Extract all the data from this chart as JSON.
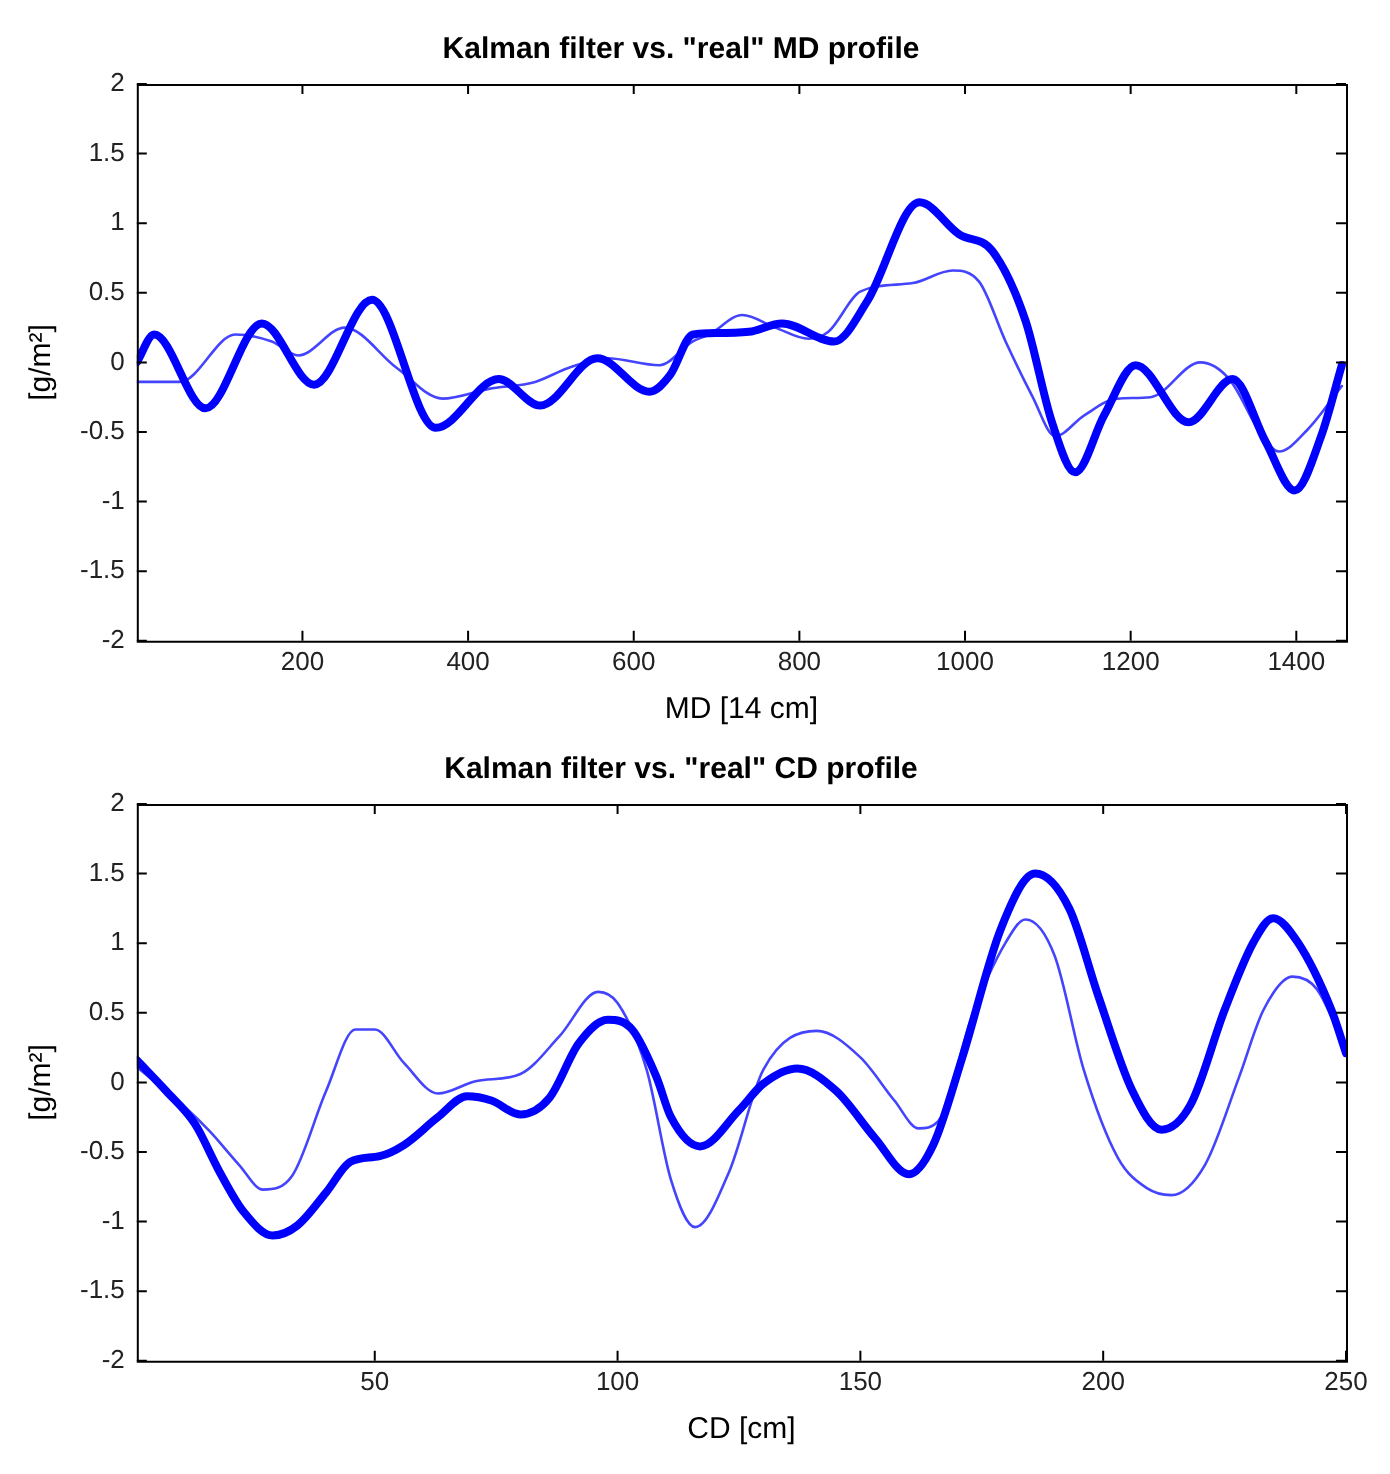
{
  "chart_data": [
    {
      "type": "line",
      "title": "Kalman filter vs. \"real\" MD profile",
      "xlabel": "MD [14 cm]",
      "ylabel": "[g/m²]",
      "xlim": [
        0,
        1460
      ],
      "xticks": [
        200,
        400,
        600,
        800,
        1000,
        1200,
        1400
      ],
      "ylim": [
        -2,
        2
      ],
      "yticks": [
        -2,
        -1.5,
        -1,
        -0.5,
        0,
        0.5,
        1,
        1.5,
        2
      ],
      "legend": false,
      "marker": "none",
      "grid": false,
      "series": [
        {
          "color": "#0000ff",
          "x": [
            0,
            21,
            83,
            151,
            214,
            284,
            361,
            437,
            487,
            556,
            619,
            644,
            671,
            691,
            739,
            779,
            842,
            882,
            945,
            993,
            1033,
            1073,
            1105,
            1133,
            1168,
            1206,
            1270,
            1323,
            1363,
            1398,
            1430,
            1455
          ],
          "values": [
            0,
            0.2,
            -0.33,
            0.28,
            -0.16,
            0.45,
            -0.47,
            -0.12,
            -0.31,
            0.03,
            -0.21,
            -0.09,
            0.2,
            0.21,
            0.22,
            0.28,
            0.15,
            0.44,
            1.15,
            0.92,
            0.8,
            0.3,
            -0.43,
            -0.79,
            -0.38,
            -0.02,
            -0.43,
            -0.12,
            -0.57,
            -0.92,
            -0.53,
            -0.02
          ]
        },
        {
          "color": "#4444ff",
          "x": [
            0,
            52,
            119,
            163,
            195,
            251,
            314,
            369,
            425,
            481,
            521,
            568,
            631,
            671,
            691,
            731,
            771,
            811,
            835,
            874,
            937,
            985,
            1017,
            1049,
            1081,
            1109,
            1144,
            1184,
            1224,
            1284,
            1319,
            1359,
            1379,
            1414,
            1455
          ],
          "values": [
            -0.14,
            -0.14,
            0.2,
            0.15,
            0.05,
            0.25,
            -0.04,
            -0.26,
            -0.19,
            -0.14,
            -0.04,
            0.03,
            -0.02,
            0.15,
            0.2,
            0.34,
            0.25,
            0.17,
            0.22,
            0.51,
            0.57,
            0.66,
            0.58,
            0.15,
            -0.24,
            -0.53,
            -0.38,
            -0.26,
            -0.25,
            0,
            -0.12,
            -0.53,
            -0.64,
            -0.48,
            -0.17
          ]
        }
      ]
    },
    {
      "type": "line",
      "title": "Kalman filter vs. \"real\" CD profile",
      "xlabel": "CD [cm]",
      "ylabel": "[g/m²]",
      "xlim": [
        1,
        250
      ],
      "xticks": [
        50,
        100,
        150,
        200,
        250
      ],
      "ylim": [
        -2,
        2
      ],
      "yticks": [
        -2,
        -1.5,
        -1,
        -0.5,
        0,
        0.5,
        1,
        1.5,
        2
      ],
      "legend": false,
      "marker": "none",
      "grid": false,
      "series": [
        {
          "color": "#0000ff",
          "x": [
            1,
            7,
            13,
            18,
            23,
            29,
            34,
            40,
            45,
            51,
            56,
            63,
            69,
            74,
            80,
            86,
            92,
            98,
            103,
            108,
            111,
            117,
            125,
            130,
            137,
            145,
            153,
            160,
            165,
            171,
            179,
            186,
            193,
            199,
            206,
            212,
            218,
            225,
            231,
            235,
            240,
            247,
            250
          ],
          "values": [
            0.16,
            -0.06,
            -0.3,
            -0.64,
            -0.93,
            -1.1,
            -1.03,
            -0.79,
            -0.57,
            -0.53,
            -0.45,
            -0.25,
            -0.1,
            -0.13,
            -0.23,
            -0.11,
            0.28,
            0.45,
            0.38,
            0.04,
            -0.25,
            -0.46,
            -0.2,
            -0.01,
            0.1,
            -0.06,
            -0.4,
            -0.66,
            -0.45,
            0.18,
            1.11,
            1.5,
            1.25,
            0.62,
            -0.06,
            -0.34,
            -0.16,
            0.52,
            1.01,
            1.18,
            1.01,
            0.52,
            0.21
          ]
        },
        {
          "color": "#4444ff",
          "x": [
            1,
            11,
            16,
            22,
            27,
            33,
            40,
            46,
            50,
            56,
            63,
            71,
            80,
            88,
            96,
            100,
            106,
            111,
            116,
            123,
            130,
            141,
            150,
            157,
            162,
            166,
            173,
            180,
            184,
            190,
            196,
            203,
            209,
            214,
            221,
            228,
            233,
            239,
            244,
            250
          ],
          "values": [
            0.11,
            -0.18,
            -0.35,
            -0.59,
            -0.77,
            -0.67,
            -0.06,
            0.38,
            0.38,
            0.14,
            -0.08,
            0.01,
            0.06,
            0.33,
            0.65,
            0.57,
            0.09,
            -0.7,
            -1.04,
            -0.64,
            0.09,
            0.37,
            0.18,
            -0.13,
            -0.33,
            -0.28,
            0.48,
            1.01,
            1.17,
            0.91,
            0.09,
            -0.54,
            -0.76,
            -0.81,
            -0.59,
            0.04,
            0.52,
            0.76,
            0.67,
            0.23
          ]
        }
      ]
    }
  ]
}
